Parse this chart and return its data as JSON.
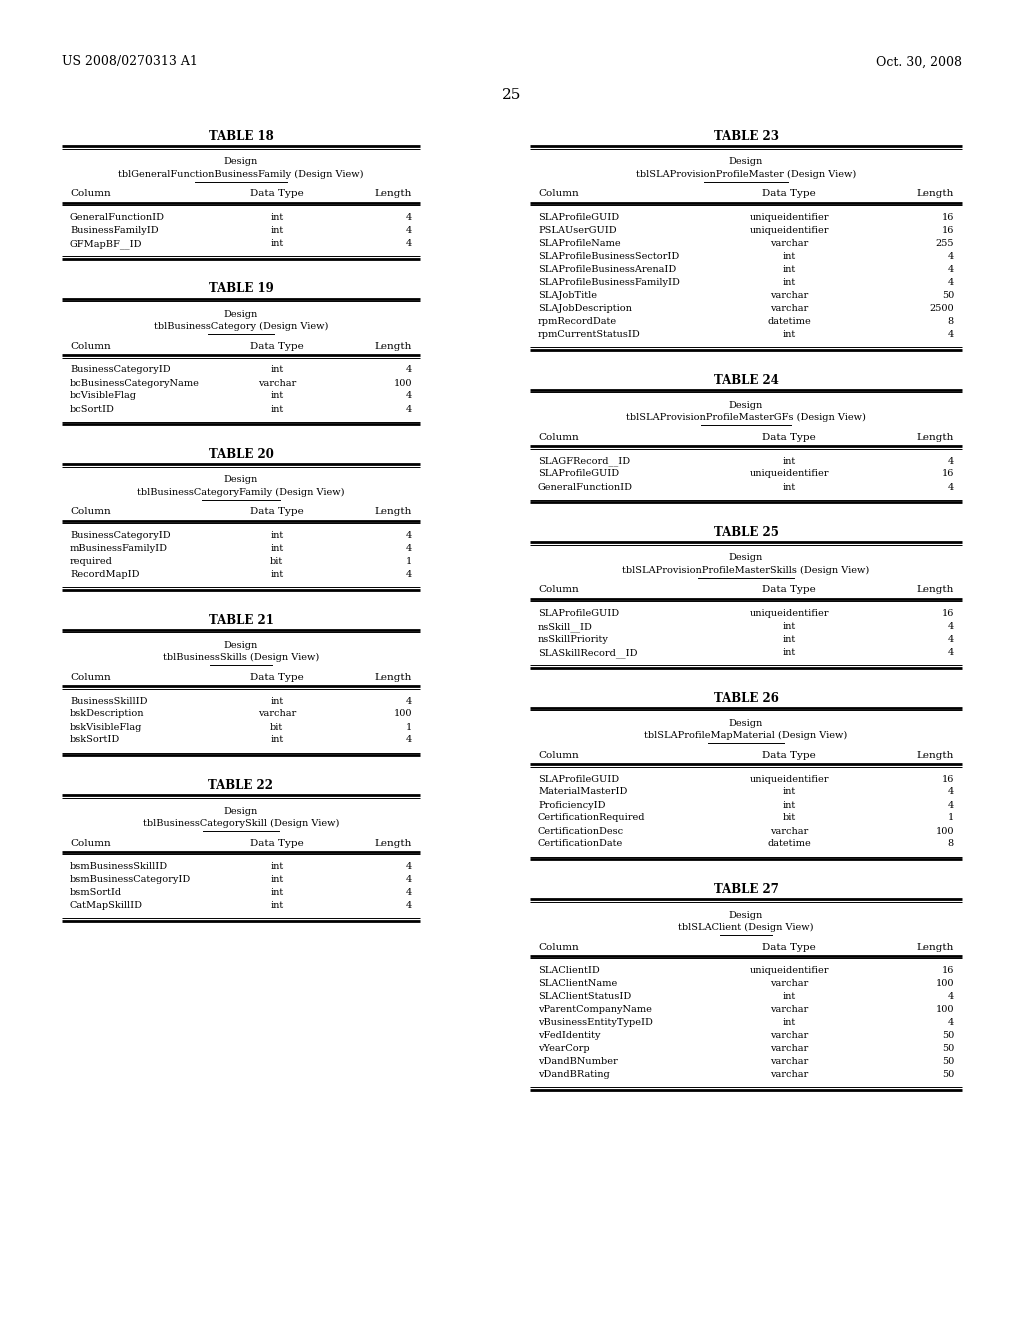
{
  "page_header_left": "US 2008/0270313 A1",
  "page_header_right": "Oct. 30, 2008",
  "page_number": "25",
  "background_color": "#ffffff",
  "text_color": "#000000",
  "tables": [
    {
      "title": "TABLE 18",
      "design_label": "Design",
      "subtitle": "tblGeneralFunctionBusinessFamily (Design View)",
      "columns": [
        "Column",
        "Data Type",
        "Length"
      ],
      "rows": [
        [
          "GeneralFunctionID",
          "int",
          "4"
        ],
        [
          "BusinessFamilyID",
          "int",
          "4"
        ],
        [
          "GFMapBF__ID",
          "int",
          "4"
        ]
      ],
      "side": "left"
    },
    {
      "title": "TABLE 19",
      "design_label": "Design",
      "subtitle": "tblBusinessCategory (Design View)",
      "columns": [
        "Column",
        "Data Type",
        "Length"
      ],
      "rows": [
        [
          "BusinessCategoryID",
          "int",
          "4"
        ],
        [
          "bcBusinessCategoryName",
          "varchar",
          "100"
        ],
        [
          "bcVisibleFlag",
          "int",
          "4"
        ],
        [
          "bcSortID",
          "int",
          "4"
        ]
      ],
      "side": "left"
    },
    {
      "title": "TABLE 20",
      "design_label": "Design",
      "subtitle": "tblBusinessCategoryFamily (Design View)",
      "columns": [
        "Column",
        "Data Type",
        "Length"
      ],
      "rows": [
        [
          "BusinessCategoryID",
          "int",
          "4"
        ],
        [
          "mBusinessFamilyID",
          "int",
          "4"
        ],
        [
          "required",
          "bit",
          "1"
        ],
        [
          "RecordMapID",
          "int",
          "4"
        ]
      ],
      "side": "left"
    },
    {
      "title": "TABLE 21",
      "design_label": "Design",
      "subtitle": "tblBusinessSkills (Design View)",
      "columns": [
        "Column",
        "Data Type",
        "Length"
      ],
      "rows": [
        [
          "BusinessSkillID",
          "int",
          "4"
        ],
        [
          "bskDescription",
          "varchar",
          "100"
        ],
        [
          "bskVisibleFlag",
          "bit",
          "1"
        ],
        [
          "bskSortID",
          "int",
          "4"
        ]
      ],
      "side": "left"
    },
    {
      "title": "TABLE 22",
      "design_label": "Design",
      "subtitle": "tblBusinessCategorySkill (Design View)",
      "columns": [
        "Column",
        "Data Type",
        "Length"
      ],
      "rows": [
        [
          "bsmBusinessSkillID",
          "int",
          "4"
        ],
        [
          "bsmBusinessCategoryID",
          "int",
          "4"
        ],
        [
          "bsmSortId",
          "int",
          "4"
        ],
        [
          "CatMapSkillID",
          "int",
          "4"
        ]
      ],
      "side": "left"
    },
    {
      "title": "TABLE 23",
      "design_label": "Design",
      "subtitle": "tblSLAProvisionProfileMaster (Design View)",
      "columns": [
        "Column",
        "Data Type",
        "Length"
      ],
      "rows": [
        [
          "SLAProfileGUID",
          "uniqueidentifier",
          "16"
        ],
        [
          "PSLAUserGUID",
          "uniqueidentifier",
          "16"
        ],
        [
          "SLAProfileName",
          "varchar",
          "255"
        ],
        [
          "SLAProfileBusinessSectorID",
          "int",
          "4"
        ],
        [
          "SLAProfileBusinessArenaID",
          "int",
          "4"
        ],
        [
          "SLAProfileBusinessFamilyID",
          "int",
          "4"
        ],
        [
          "SLAJobTitle",
          "varchar",
          "50"
        ],
        [
          "SLAJobDescription",
          "varchar",
          "2500"
        ],
        [
          "rpmRecordDate",
          "datetime",
          "8"
        ],
        [
          "rpmCurrentStatusID",
          "int",
          "4"
        ]
      ],
      "side": "right"
    },
    {
      "title": "TABLE 24",
      "design_label": "Design",
      "subtitle": "tblSLAProvisionProfileMasterGFs (Design View)",
      "columns": [
        "Column",
        "Data Type",
        "Length"
      ],
      "rows": [
        [
          "SLAGFRecord__ID",
          "int",
          "4"
        ],
        [
          "SLAProfileGUID",
          "uniqueidentifier",
          "16"
        ],
        [
          "GeneralFunctionID",
          "int",
          "4"
        ]
      ],
      "side": "right"
    },
    {
      "title": "TABLE 25",
      "design_label": "Design",
      "subtitle": "tblSLAProvisionProfileMasterSkills (Design View)",
      "columns": [
        "Column",
        "Data Type",
        "Length"
      ],
      "rows": [
        [
          "SLAProfileGUID",
          "uniqueidentifier",
          "16"
        ],
        [
          "nsSkill__ID",
          "int",
          "4"
        ],
        [
          "nsSkillPriority",
          "int",
          "4"
        ],
        [
          "SLASkillRecord__ID",
          "int",
          "4"
        ]
      ],
      "side": "right"
    },
    {
      "title": "TABLE 26",
      "design_label": "Design",
      "subtitle": "tblSLAProfileMapMaterial (Design View)",
      "columns": [
        "Column",
        "Data Type",
        "Length"
      ],
      "rows": [
        [
          "SLAProfileGUID",
          "uniqueidentifier",
          "16"
        ],
        [
          "MaterialMasterID",
          "int",
          "4"
        ],
        [
          "ProficiencyID",
          "int",
          "4"
        ],
        [
          "CertificationRequired",
          "bit",
          "1"
        ],
        [
          "CertificationDesc",
          "varchar",
          "100"
        ],
        [
          "CertificationDate",
          "datetime",
          "8"
        ]
      ],
      "side": "right"
    },
    {
      "title": "TABLE 27",
      "design_label": "Design",
      "subtitle": "tblSLAClient (Design View)",
      "columns": [
        "Column",
        "Data Type",
        "Length"
      ],
      "rows": [
        [
          "SLAClientID",
          "uniqueidentifier",
          "16"
        ],
        [
          "SLAClientName",
          "varchar",
          "100"
        ],
        [
          "SLAClientStatusID",
          "int",
          "4"
        ],
        [
          "vParentCompanyName",
          "varchar",
          "100"
        ],
        [
          "vBusinessEntityTypeID",
          "int",
          "4"
        ],
        [
          "vFedIdentity",
          "varchar",
          "50"
        ],
        [
          "vYearCorp",
          "varchar",
          "50"
        ],
        [
          "vDandBNumber",
          "varchar",
          "50"
        ],
        [
          "vDandBRating",
          "varchar",
          "50"
        ]
      ],
      "side": "right"
    }
  ]
}
